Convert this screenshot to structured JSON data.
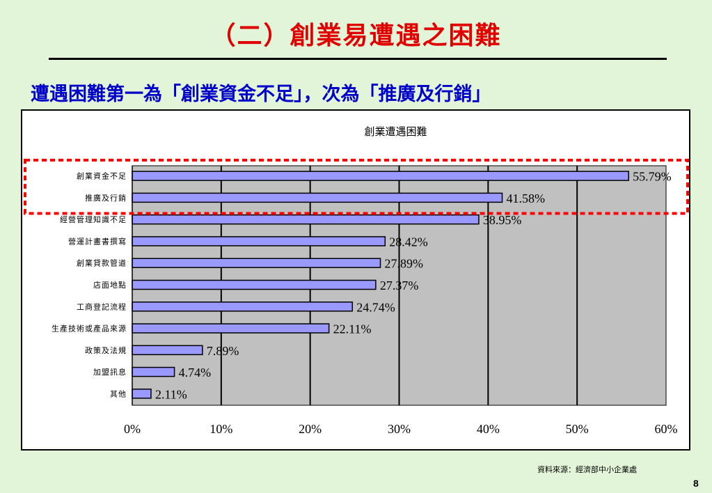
{
  "slide": {
    "title": "（二）創業易遭遇之困難",
    "subtitle": "遭遇困難第一為「創業資金不足」，次為「推廣及行銷」",
    "source": "資料來源：經濟部中小企業處",
    "page_number": "8"
  },
  "colors": {
    "title": "#e00000",
    "subtitle": "#0000c8",
    "bar_fill": "#9999ff",
    "plot_background": "#c0c0c0",
    "highlight_box": "#ff0000",
    "background": "#e3f5d8"
  },
  "chart_data": {
    "type": "bar",
    "orientation": "horizontal",
    "title": "創業遭遇困難",
    "categories": [
      "創業資金不足",
      "推廣及行銷",
      "經營管理知識不足",
      "營運計畫書撰寫",
      "創業貸款管道",
      "店面地點",
      "工商登記流程",
      "生產技術或產品來源",
      "政策及法規",
      "加盟訊息",
      "其他"
    ],
    "values": [
      55.79,
      41.58,
      38.95,
      28.42,
      27.89,
      27.37,
      24.74,
      22.11,
      7.89,
      4.74,
      2.11
    ],
    "data_labels": [
      "55.79%",
      "41.58%",
      "38.95%",
      "28.42%",
      "27.89%",
      "27.37%",
      "24.74%",
      "22.11%",
      "7.89%",
      "4.74%",
      "2.11%"
    ],
    "xlim": [
      0,
      60
    ],
    "x_ticks": [
      "0%",
      "10%",
      "20%",
      "30%",
      "40%",
      "50%",
      "60%"
    ],
    "grid": true,
    "highlighted_categories": [
      "創業資金不足",
      "推廣及行銷"
    ]
  }
}
